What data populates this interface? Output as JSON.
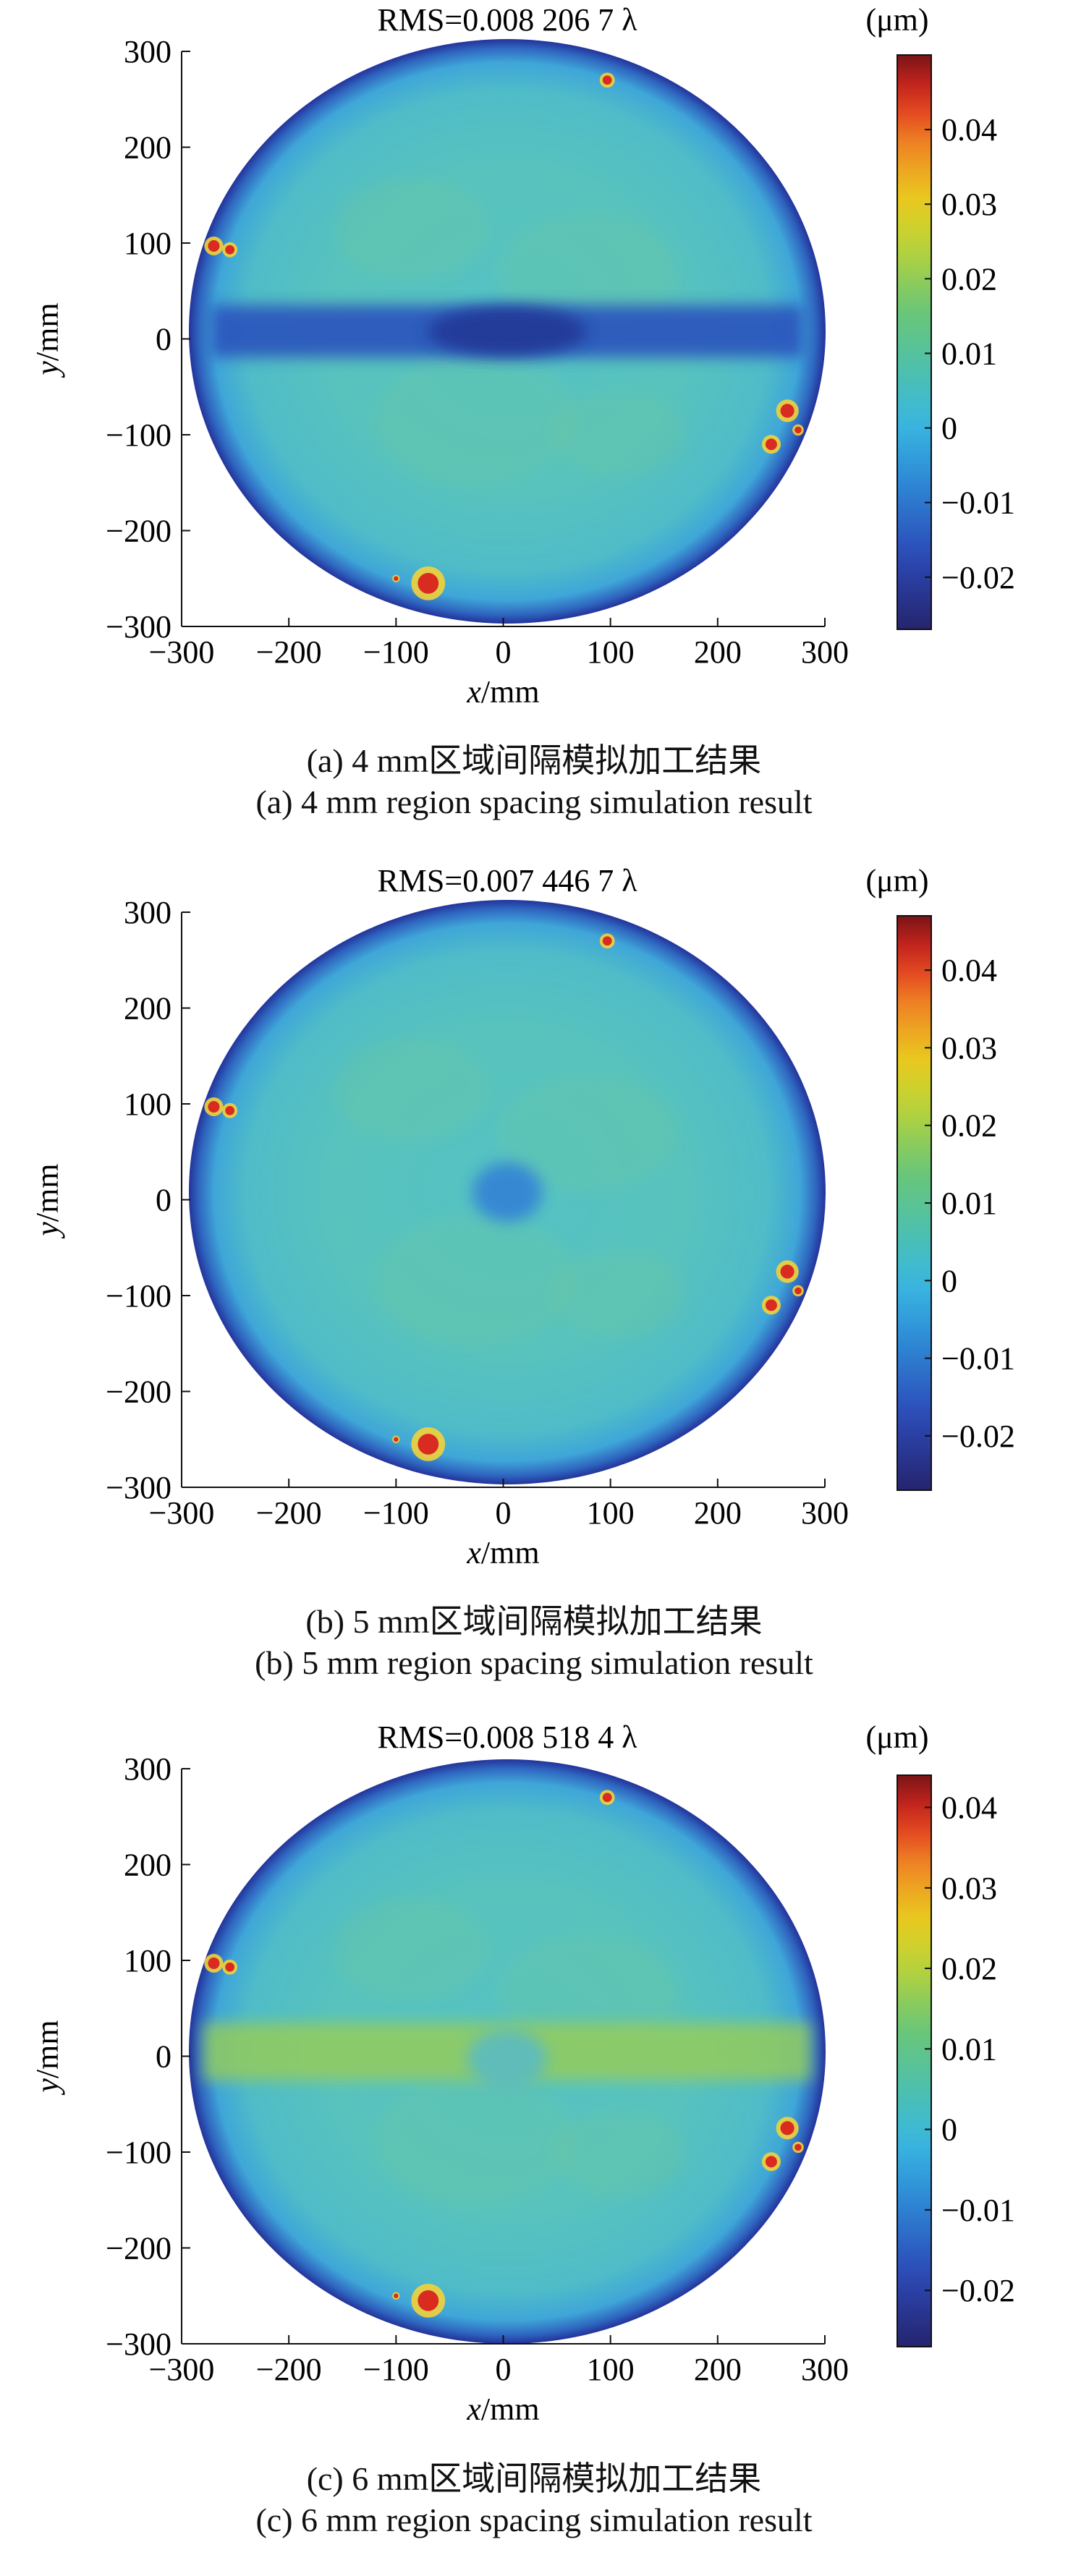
{
  "chart_data": [
    {
      "type": "heatmap",
      "title": "RMS=0.008 206 7 λ",
      "xlabel": "x/mm",
      "ylabel": "y/mm",
      "x_ticks": [
        -300,
        -200,
        -100,
        0,
        100,
        200,
        300
      ],
      "y_ticks": [
        300,
        200,
        100,
        0,
        -100,
        -200,
        -300
      ],
      "xlim": [
        -300,
        300
      ],
      "ylim": [
        -300,
        300
      ],
      "colorbar": {
        "unit": "(μm)",
        "range": [
          -0.027,
          0.05
        ],
        "tick_values": [
          0.04,
          0.03,
          0.02,
          0.01,
          0,
          -0.01,
          -0.02
        ],
        "tick_labels": [
          "0.04",
          "0.03",
          "0.02",
          "0.01",
          "0",
          "−0.01",
          "−0.02"
        ]
      },
      "feature": "dark-blue horizontal band along y=0",
      "caption_cn": "(a) 4 mm区域间隔模拟加工结果",
      "caption_en": "(a) 4 mm region spacing simulation result"
    },
    {
      "type": "heatmap",
      "title": "RMS=0.007 446 7 λ",
      "xlabel": "x/mm",
      "ylabel": "y/mm",
      "x_ticks": [
        -300,
        -200,
        -100,
        0,
        100,
        200,
        300
      ],
      "y_ticks": [
        300,
        200,
        100,
        0,
        -100,
        -200,
        -300
      ],
      "xlim": [
        -300,
        300
      ],
      "ylim": [
        -300,
        300
      ],
      "colorbar": {
        "unit": "(μm)",
        "range": [
          -0.027,
          0.047
        ],
        "tick_values": [
          0.04,
          0.03,
          0.02,
          0.01,
          0,
          -0.01,
          -0.02
        ],
        "tick_labels": [
          "0.04",
          "0.03",
          "0.02",
          "0.01",
          "0",
          "−0.01",
          "−0.02"
        ]
      },
      "feature": "small blue spot at center",
      "caption_cn": "(b) 5 mm区域间隔模拟加工结果",
      "caption_en": "(b) 5 mm region spacing simulation result"
    },
    {
      "type": "heatmap",
      "title": "RMS=0.008 518 4 λ",
      "xlabel": "x/mm",
      "ylabel": "y/mm",
      "x_ticks": [
        -300,
        -200,
        -100,
        0,
        100,
        200,
        300
      ],
      "y_ticks": [
        300,
        200,
        100,
        0,
        -100,
        -200,
        -300
      ],
      "xlim": [
        -300,
        300
      ],
      "ylim": [
        -300,
        300
      ],
      "colorbar": {
        "unit": "(μm)",
        "range": [
          -0.027,
          0.044
        ],
        "tick_values": [
          0.04,
          0.03,
          0.02,
          0.01,
          0,
          -0.01,
          -0.02
        ],
        "tick_labels": [
          "0.04",
          "0.03",
          "0.02",
          "0.01",
          "0",
          "−0.01",
          "−0.02"
        ]
      },
      "feature": "yellow-green horizontal band along y=0",
      "caption_cn": "(c) 6 mm区域间隔模拟加工结果",
      "caption_en": "(c) 6 mm region spacing simulation result"
    }
  ]
}
